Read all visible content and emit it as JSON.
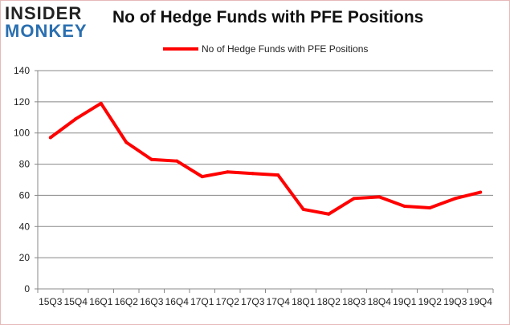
{
  "logo": {
    "line1": "INSIDER",
    "line2": "MONKEY"
  },
  "chart_data": {
    "type": "line",
    "title": "No of Hedge Funds with PFE Positions",
    "categories": [
      "15Q3",
      "15Q4",
      "16Q1",
      "16Q2",
      "16Q3",
      "16Q4",
      "17Q1",
      "17Q2",
      "17Q3",
      "17Q4",
      "18Q1",
      "18Q2",
      "18Q3",
      "18Q4",
      "19Q1",
      "19Q2",
      "19Q3",
      "19Q4"
    ],
    "series": [
      {
        "name": "No of Hedge Funds with PFE Positions",
        "color": "#ff0000",
        "values": [
          97,
          109,
          119,
          94,
          83,
          82,
          72,
          75,
          74,
          73,
          51,
          48,
          58,
          59,
          53,
          52,
          58,
          62
        ]
      }
    ],
    "ylim": [
      0,
      140
    ],
    "yticks": [
      0,
      20,
      40,
      60,
      80,
      100,
      120,
      140
    ],
    "grid": true,
    "legend": "top-center"
  }
}
